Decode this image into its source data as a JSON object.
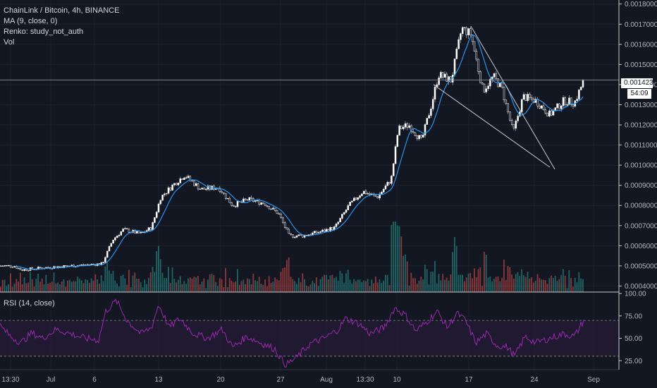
{
  "legend": {
    "symbol": "ChainLink / Bitcoin, 4h, BINANCE",
    "ma": "MA (9, close, 0)",
    "renko": "Renko: study_not_auth",
    "vol": "Vol"
  },
  "rsi_label": "RSI (14, close)",
  "last_price_label": "0.00142306",
  "countdown": "54:09",
  "colors": {
    "background": "#131722",
    "up": "#26a69a",
    "down": "#ef5350",
    "ma": "#2196f3",
    "rsi_line": "#9c27b0",
    "rsi_band": "#2b1d3d",
    "grid": "#1e222d",
    "axis_text": "#b2b5be",
    "trendline": "#c8c8c8"
  },
  "chart_data": [
    {
      "type": "candlestick",
      "title": "ChainLink / Bitcoin, 4h, BINANCE",
      "y_ticks": [
        "0.00180000",
        "0.00170000",
        "0.00160000",
        "0.00150000",
        "0.00140000",
        "0.00130000",
        "0.00120000",
        "0.00110000",
        "0.00100000",
        "0.00090000",
        "0.00080000",
        "0.00070000",
        "0.00060000",
        "0.00050000",
        "0.00040000"
      ],
      "ylim": [
        0.00037,
        0.00182
      ],
      "x_ticks": [
        "13:30",
        "Jul",
        "6",
        "13",
        "20",
        "27",
        "Aug",
        "13:30",
        "10",
        "17",
        "24",
        "Sep"
      ],
      "last_price": 0.00142306,
      "close_series_anchors": [
        [
          0,
          0.0005
        ],
        [
          20,
          0.0005
        ],
        [
          30,
          0.00048
        ],
        [
          60,
          0.00049
        ],
        [
          100,
          0.0005
        ],
        [
          145,
          0.00051
        ],
        [
          160,
          0.00063
        ],
        [
          175,
          0.00068
        ],
        [
          200,
          0.00066
        ],
        [
          215,
          0.00069
        ],
        [
          228,
          0.00084
        ],
        [
          245,
          0.0009
        ],
        [
          262,
          0.00095
        ],
        [
          285,
          0.00088
        ],
        [
          310,
          0.00089
        ],
        [
          330,
          0.0008
        ],
        [
          352,
          0.00083
        ],
        [
          375,
          0.00081
        ],
        [
          395,
          0.00076
        ],
        [
          410,
          0.00065
        ],
        [
          430,
          0.00065
        ],
        [
          455,
          0.00067
        ],
        [
          475,
          0.00069
        ],
        [
          495,
          0.0008
        ],
        [
          515,
          0.00087
        ],
        [
          535,
          0.00084
        ],
        [
          555,
          0.00093
        ],
        [
          565,
          0.00118
        ],
        [
          580,
          0.0012
        ],
        [
          598,
          0.00112
        ],
        [
          612,
          0.0013
        ],
        [
          622,
          0.00145
        ],
        [
          640,
          0.00142
        ],
        [
          655,
          0.00168
        ],
        [
          668,
          0.00165
        ],
        [
          685,
          0.00137
        ],
        [
          700,
          0.00144
        ],
        [
          712,
          0.00138
        ],
        [
          728,
          0.00116
        ],
        [
          742,
          0.00134
        ],
        [
          760,
          0.00132
        ],
        [
          780,
          0.00125
        ],
        [
          800,
          0.00132
        ],
        [
          815,
          0.00131
        ],
        [
          828,
          0.00142
        ]
      ]
    },
    {
      "type": "bar",
      "title": "Vol",
      "note": "volume histogram at bottom of main pane"
    },
    {
      "type": "line",
      "title": "RSI (14, close)",
      "y_ticks": [
        "100.00",
        "75.00",
        "50.00",
        "25.00"
      ],
      "ylim": [
        15,
        100
      ],
      "band": [
        30,
        70
      ],
      "anchors": [
        [
          0,
          64
        ],
        [
          15,
          52
        ],
        [
          30,
          45
        ],
        [
          45,
          56
        ],
        [
          60,
          50
        ],
        [
          80,
          60
        ],
        [
          100,
          55
        ],
        [
          120,
          50
        ],
        [
          140,
          48
        ],
        [
          150,
          80
        ],
        [
          165,
          92
        ],
        [
          180,
          70
        ],
        [
          200,
          55
        ],
        [
          215,
          62
        ],
        [
          225,
          88
        ],
        [
          240,
          62
        ],
        [
          255,
          72
        ],
        [
          275,
          55
        ],
        [
          295,
          50
        ],
        [
          315,
          60
        ],
        [
          330,
          40
        ],
        [
          350,
          52
        ],
        [
          370,
          45
        ],
        [
          390,
          38
        ],
        [
          405,
          20
        ],
        [
          420,
          28
        ],
        [
          440,
          44
        ],
        [
          460,
          50
        ],
        [
          480,
          60
        ],
        [
          490,
          72
        ],
        [
          510,
          66
        ],
        [
          525,
          55
        ],
        [
          545,
          62
        ],
        [
          560,
          84
        ],
        [
          575,
          76
        ],
        [
          590,
          58
        ],
        [
          605,
          68
        ],
        [
          620,
          80
        ],
        [
          635,
          62
        ],
        [
          648,
          78
        ],
        [
          660,
          70
        ],
        [
          675,
          45
        ],
        [
          690,
          55
        ],
        [
          705,
          42
        ],
        [
          720,
          40
        ],
        [
          730,
          30
        ],
        [
          745,
          52
        ],
        [
          760,
          45
        ],
        [
          780,
          50
        ],
        [
          800,
          55
        ],
        [
          815,
          52
        ],
        [
          828,
          70
        ]
      ]
    }
  ]
}
